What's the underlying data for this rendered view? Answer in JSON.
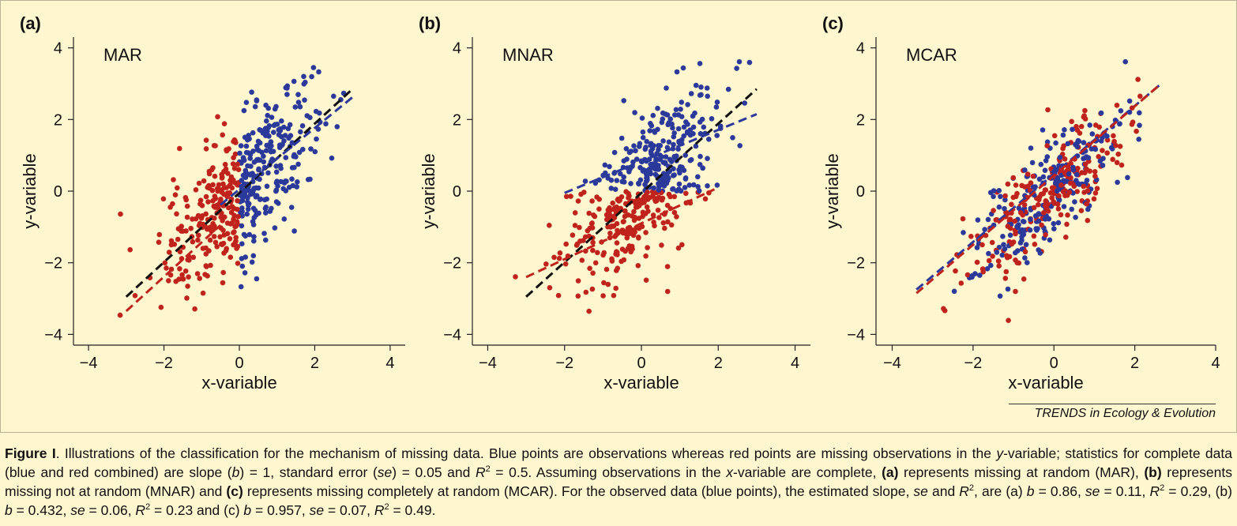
{
  "figure": {
    "credit": "TRENDS in Ecology & Evolution",
    "caption": {
      "label": "Figure I",
      "text_html": ". Illustrations of the classification for the mechanism of missing data. Blue points are observations whereas red points are missing observations in the <i>y</i>-variable; statistics for complete data (blue and red combined) are slope (<i>b</i>) = 1, standard error (<i>se</i>) = 0.05 and <i>R</i><sup>2</sup> = 0.5. Assuming observations in the <i>x</i>-variable are complete, <b>(a)</b> represents missing at random (MAR), <b>(b)</b> represents missing not at random (MNAR) and <b>(c)</b> represents missing completely at random (MCAR). For the observed data (blue points), the estimated slope, <i>se</i> and <i>R</i><sup>2</sup>, are (a) <i>b</i> = 0.86, <i>se</i> = 0.11, <i>R</i><sup>2</sup> = 0.29, (b) <i>b</i> = 0.432, <i>se</i> = 0.06, <i>R</i><sup>2</sup> = 0.23 and (c) <i>b</i> = 0.957, <i>se</i> = 0.07, <i>R</i><sup>2</sup> = 0.49."
    }
  },
  "chart_data": [
    {
      "type": "scatter",
      "panel": "(a)",
      "label": "MAR",
      "xlabel": "x-variable",
      "ylabel": "y-variable",
      "xlim": [
        -4.4,
        4.4
      ],
      "ylim": [
        -4.3,
        4.3
      ],
      "xticks": [
        -4,
        -2,
        0,
        2,
        4
      ],
      "yticks": [
        -4,
        -2,
        0,
        2,
        4
      ],
      "tick_labels": [
        "−4",
        "−2",
        "0",
        "2",
        "4"
      ],
      "colors": {
        "observed": "#2b3a9a",
        "missing": "#c0221c",
        "complete_fit": "#111111"
      },
      "series": [
        {
          "role": "observed",
          "rule": "x > 0",
          "n_shown": 250,
          "x_mean": 1.0,
          "x_sd": 0.65,
          "slope": 0.86,
          "intercept": 0.0,
          "resid_sd": 0.85
        },
        {
          "role": "missing",
          "rule": "x <= 0",
          "n_shown": 230,
          "x_mean": -0.9,
          "x_sd": 0.65,
          "slope": 1.0,
          "intercept": 0.0,
          "resid_sd": 0.95
        }
      ],
      "fit_lines": [
        {
          "role": "complete_fit",
          "x": [
            -3.0,
            3.0
          ],
          "y": [
            -2.95,
            2.85
          ]
        },
        {
          "role": "missing",
          "x": [
            -3.0,
            -0.5
          ],
          "y": [
            -3.35,
            -0.95
          ]
        },
        {
          "role": "observed",
          "x": [
            -0.5,
            3.0
          ],
          "y": [
            -0.38,
            2.62
          ]
        }
      ]
    },
    {
      "type": "scatter",
      "panel": "(b)",
      "label": "MNAR",
      "xlabel": "x-variable",
      "ylabel": "y-variable",
      "xlim": [
        -4.4,
        4.4
      ],
      "ylim": [
        -4.3,
        4.3
      ],
      "xticks": [
        -4,
        -2,
        0,
        2,
        4
      ],
      "yticks": [
        -4,
        -2,
        0,
        2,
        4
      ],
      "tick_labels": [
        "−4",
        "−2",
        "0",
        "2",
        "4"
      ],
      "colors": {
        "observed": "#2b3a9a",
        "missing": "#c0221c",
        "complete_fit": "#111111"
      },
      "series": [
        {
          "role": "observed",
          "rule": "y > 0",
          "n_shown": 250,
          "x_mean": 0.5,
          "x_sd": 0.9,
          "slope": 0.432,
          "intercept": 0.85,
          "resid_sd": 0.65
        },
        {
          "role": "missing",
          "rule": "y <= 0",
          "n_shown": 230,
          "x_mean": -0.6,
          "x_sd": 0.85,
          "slope": 0.45,
          "intercept": -0.75,
          "resid_sd": 0.7
        }
      ],
      "fit_lines": [
        {
          "role": "complete_fit",
          "x": [
            -3.0,
            3.0
          ],
          "y": [
            -2.95,
            2.85
          ]
        },
        {
          "role": "missing",
          "x": [
            -3.0,
            1.9
          ],
          "y": [
            -2.4,
            0.05
          ]
        },
        {
          "role": "observed",
          "x": [
            -2.0,
            3.0
          ],
          "y": [
            -0.05,
            2.15
          ]
        }
      ]
    },
    {
      "type": "scatter",
      "panel": "(c)",
      "label": "MCAR",
      "xlabel": "x-variable",
      "ylabel": "y-variable",
      "xlim": [
        -4.4,
        4.0
      ],
      "ylim": [
        -4.3,
        4.3
      ],
      "xticks": [
        -4,
        -2,
        0,
        2,
        4
      ],
      "yticks": [
        -4,
        -2,
        0,
        2,
        4
      ],
      "tick_labels": [
        "−4",
        "−2",
        "0",
        "2",
        "4"
      ],
      "colors": {
        "observed": "#2b3a9a",
        "missing": "#c0221c"
      },
      "series": [
        {
          "role": "observed",
          "rule": "random",
          "n_shown": 230,
          "x_mean": -0.1,
          "x_sd": 1.0,
          "slope": 0.957,
          "intercept": 0.0,
          "resid_sd": 0.75
        },
        {
          "role": "missing",
          "rule": "random",
          "n_shown": 230,
          "x_mean": -0.1,
          "x_sd": 1.0,
          "slope": 1.0,
          "intercept": 0.0,
          "resid_sd": 0.75
        }
      ],
      "fit_lines": [
        {
          "role": "observed",
          "x": [
            -3.4,
            2.6
          ],
          "y": [
            -2.75,
            2.95
          ]
        },
        {
          "role": "missing",
          "x": [
            -3.4,
            2.6
          ],
          "y": [
            -2.85,
            2.95
          ]
        }
      ]
    }
  ]
}
